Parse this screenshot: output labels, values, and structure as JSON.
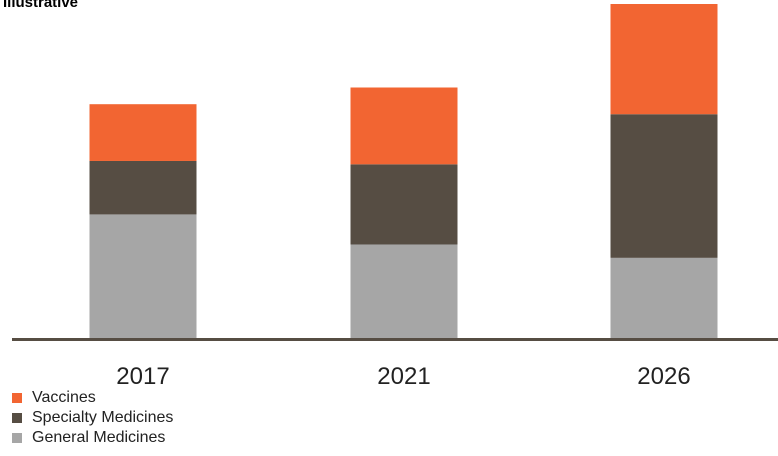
{
  "subtitle": "Illustrative",
  "chart_data": {
    "type": "bar",
    "stacked": true,
    "categories": [
      "2017",
      "2021",
      "2026"
    ],
    "series": [
      {
        "name": "General Medicines",
        "color": "#a6a6a6",
        "values": [
          37,
          28,
          24
        ]
      },
      {
        "name": "Specialty Medicines",
        "color": "#564d43",
        "values": [
          16,
          24,
          43
        ]
      },
      {
        "name": "Vaccines",
        "color": "#f26532",
        "values": [
          17,
          23,
          33
        ]
      }
    ],
    "ylim": [
      0,
      100
    ],
    "grid": false,
    "legend": "bottom-left",
    "xlabel": "",
    "ylabel": ""
  },
  "legend": {
    "items": [
      {
        "label": "Vaccines",
        "color": "#f26532"
      },
      {
        "label": "Specialty Medicines",
        "color": "#564d43"
      },
      {
        "label": "General Medicines",
        "color": "#a6a6a6"
      }
    ]
  }
}
